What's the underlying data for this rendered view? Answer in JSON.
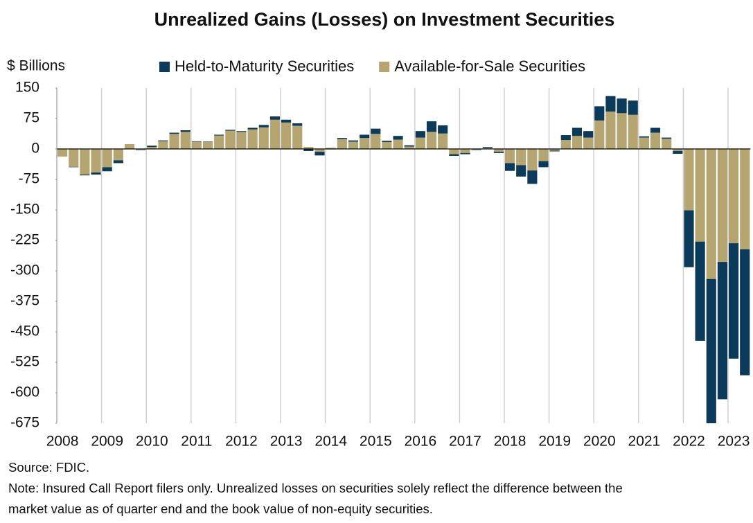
{
  "chart_data": {
    "type": "stacked_bar",
    "title": "Unrealized Gains (Losses) on Investment Securities",
    "y_axis_label": "$ Billions",
    "source": "Source: FDIC.",
    "note_lines": [
      "Note: Insured Call Report filers only. Unrealized losses on securities solely reflect the difference between the",
      "market value as of quarter end and the book value of non-equity securities."
    ],
    "categories": [
      "2008",
      null,
      null,
      null,
      "2009",
      null,
      null,
      null,
      "2010",
      null,
      null,
      null,
      "2011",
      null,
      null,
      null,
      "2012",
      null,
      null,
      null,
      "2013",
      null,
      null,
      null,
      "2014",
      null,
      null,
      null,
      "2015",
      null,
      null,
      null,
      "2016",
      null,
      null,
      null,
      "2017",
      null,
      null,
      null,
      "2018",
      null,
      null,
      null,
      "2019",
      null,
      null,
      null,
      "2020",
      null,
      null,
      null,
      "2021",
      null,
      null,
      null,
      "2022",
      null,
      null,
      null,
      "2023",
      null
    ],
    "series": [
      {
        "name": "Available-for-Sale Securities",
        "color": "#b5a571",
        "values": [
          -19,
          -44,
          -63,
          -58,
          -45,
          -28,
          12,
          -2,
          5,
          19,
          37,
          42,
          18,
          17,
          33,
          45,
          42,
          48,
          53,
          72,
          65,
          57,
          5,
          -7,
          3,
          24,
          18,
          27,
          37,
          17,
          23,
          6,
          28,
          42,
          38,
          -13,
          -10,
          -2,
          3,
          -7,
          -35,
          -40,
          -53,
          -30,
          -4,
          22,
          32,
          28,
          70,
          92,
          88,
          84,
          28,
          40,
          25,
          -5,
          -151,
          -228,
          -320,
          -278,
          -232,
          -247
        ]
      },
      {
        "name": "Held-to-Maturity Securities",
        "color": "#0b3a5a",
        "values": [
          0,
          -1,
          -2,
          -5,
          -10,
          -7,
          0,
          -1,
          3,
          2,
          3,
          4,
          1,
          1,
          2,
          2,
          2,
          4,
          6,
          8,
          7,
          6,
          -5,
          -9,
          -1,
          3,
          3,
          8,
          13,
          3,
          9,
          3,
          16,
          26,
          20,
          -4,
          -3,
          -1,
          2,
          -3,
          -19,
          -28,
          -33,
          -15,
          -2,
          12,
          20,
          16,
          35,
          38,
          36,
          35,
          3,
          12,
          3,
          -7,
          -140,
          -244,
          -355,
          -338,
          -284,
          -310
        ]
      }
    ],
    "legend_order": [
      1,
      0
    ],
    "ylim": [
      -675,
      150
    ],
    "yticks": [
      150,
      75,
      0,
      -75,
      -150,
      -225,
      -300,
      -375,
      -450,
      -525,
      -600,
      -675
    ]
  }
}
